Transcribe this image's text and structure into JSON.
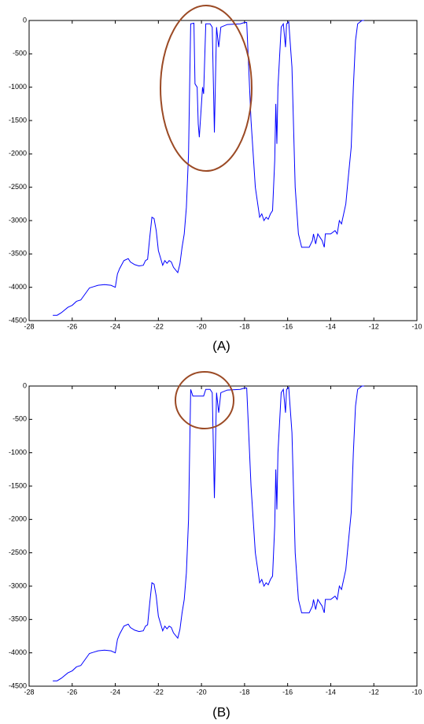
{
  "chart_data": [
    {
      "type": "line",
      "caption": "(A)",
      "color": "#0000ff",
      "x": [
        -26.9,
        -26.7,
        -26.5,
        -26.2,
        -26,
        -25.8,
        -25.6,
        -25.4,
        -25.2,
        -25,
        -24.8,
        -24.5,
        -24.2,
        -24,
        -23.9,
        -23.8,
        -23.6,
        -23.4,
        -23.3,
        -23.1,
        -22.9,
        -22.7,
        -22.6,
        -22.5,
        -22.4,
        -22.3,
        -22.2,
        -22.1,
        -22,
        -21.9,
        -21.8,
        -21.7,
        -21.6,
        -21.5,
        -21.4,
        -21.3,
        -21.1,
        -21,
        -20.9,
        -20.8,
        -20.7,
        -20.6,
        -20.55,
        -20.5,
        -20.35,
        -20.3,
        -20.2,
        -20.15,
        -20.1,
        -19.95,
        -19.9,
        -19.8,
        -19.6,
        -19.5,
        -19.4,
        -19.3,
        -19.2,
        -19.1,
        -18.8,
        -18.2,
        -18,
        -17.9,
        -17.7,
        -17.5,
        -17.3,
        -17.2,
        -17.1,
        -17,
        -16.9,
        -16.8,
        -16.7,
        -16.6,
        -16.55,
        -16.5,
        -16.45,
        -16.3,
        -16.2,
        -16.1,
        -16.05,
        -15.95,
        -15.8,
        -15.65,
        -15.5,
        -15.35,
        -15,
        -14.85,
        -14.8,
        -14.7,
        -14.6,
        -14.5,
        -14.4,
        -14.3,
        -14.25,
        -14,
        -13.8,
        -13.7,
        -13.6,
        -13.5,
        -13.4,
        -13.3,
        -13.2,
        -13.05,
        -12.95,
        -12.85,
        -12.75,
        -12.55,
        -12.45
      ],
      "values": [
        -4420,
        -4420,
        -4380,
        -4300,
        -4270,
        -4210,
        -4190,
        -4100,
        -4010,
        -3990,
        -3970,
        -3960,
        -3970,
        -4000,
        -3800,
        -3720,
        -3600,
        -3570,
        -3620,
        -3660,
        -3680,
        -3670,
        -3600,
        -3580,
        -3250,
        -2950,
        -2970,
        -3150,
        -3450,
        -3560,
        -3670,
        -3600,
        -3640,
        -3600,
        -3620,
        -3700,
        -3780,
        -3650,
        -3400,
        -3200,
        -2800,
        -2000,
        -1000,
        -50,
        -40,
        -950,
        -1000,
        -1550,
        -1750,
        -1000,
        -1100,
        -50,
        -50,
        -100,
        -1680,
        -100,
        -400,
        -100,
        -60,
        -50,
        -30,
        -30,
        -1500,
        -2500,
        -2950,
        -2900,
        -3000,
        -2950,
        -2980,
        -2900,
        -2850,
        -2100,
        -1250,
        -1850,
        -1000,
        -100,
        -50,
        -400,
        -50,
        -20,
        -700,
        -2500,
        -3200,
        -3400,
        -3400,
        -3300,
        -3200,
        -3350,
        -3200,
        -3250,
        -3300,
        -3400,
        -3200,
        -3200,
        -3150,
        -3200,
        -3000,
        -3050,
        -2900,
        -2750,
        -2400,
        -1900,
        -1000,
        -300,
        -50,
        0,
        0
      ],
      "xlim": [
        -28,
        -10
      ],
      "xticks": [
        -28,
        -26,
        -24,
        -22,
        -20,
        -18,
        -16,
        -14,
        -12,
        -10
      ],
      "ylim": [
        -4500,
        0
      ],
      "yticks": [
        0,
        -500,
        -1000,
        -1500,
        -2000,
        -2500,
        -3000,
        -3500,
        -4000,
        -4500
      ]
    },
    {
      "type": "line",
      "caption": "(B)",
      "color": "#0000ff",
      "x": [
        -26.9,
        -26.7,
        -26.5,
        -26.2,
        -26,
        -25.8,
        -25.6,
        -25.4,
        -25.2,
        -25,
        -24.8,
        -24.5,
        -24.2,
        -24,
        -23.9,
        -23.8,
        -23.6,
        -23.4,
        -23.3,
        -23.1,
        -22.9,
        -22.7,
        -22.6,
        -22.5,
        -22.4,
        -22.3,
        -22.2,
        -22.1,
        -22,
        -21.9,
        -21.8,
        -21.7,
        -21.6,
        -21.5,
        -21.4,
        -21.3,
        -21.1,
        -21,
        -20.9,
        -20.8,
        -20.7,
        -20.6,
        -20.55,
        -20.5,
        -20.4,
        -19.9,
        -19.8,
        -19.6,
        -19.5,
        -19.4,
        -19.3,
        -19.2,
        -19.1,
        -18.8,
        -18.2,
        -18,
        -17.9,
        -17.7,
        -17.5,
        -17.3,
        -17.2,
        -17.1,
        -17,
        -16.9,
        -16.8,
        -16.7,
        -16.6,
        -16.55,
        -16.5,
        -16.45,
        -16.3,
        -16.2,
        -16.1,
        -16.05,
        -15.95,
        -15.8,
        -15.65,
        -15.5,
        -15.35,
        -15,
        -14.85,
        -14.8,
        -14.7,
        -14.6,
        -14.5,
        -14.4,
        -14.3,
        -14.25,
        -14,
        -13.8,
        -13.7,
        -13.6,
        -13.5,
        -13.4,
        -13.3,
        -13.2,
        -13.05,
        -12.95,
        -12.85,
        -12.75,
        -12.55,
        -12.45
      ],
      "values": [
        -4420,
        -4420,
        -4380,
        -4300,
        -4270,
        -4210,
        -4190,
        -4100,
        -4010,
        -3990,
        -3970,
        -3960,
        -3970,
        -4000,
        -3800,
        -3720,
        -3600,
        -3570,
        -3620,
        -3660,
        -3680,
        -3670,
        -3600,
        -3580,
        -3250,
        -2950,
        -2970,
        -3150,
        -3450,
        -3560,
        -3670,
        -3600,
        -3640,
        -3600,
        -3620,
        -3700,
        -3780,
        -3650,
        -3400,
        -3200,
        -2800,
        -2000,
        -1000,
        -50,
        -150,
        -150,
        -50,
        -50,
        -100,
        -1680,
        -100,
        -400,
        -100,
        -60,
        -50,
        -30,
        -30,
        -1500,
        -2500,
        -2950,
        -2900,
        -3000,
        -2950,
        -2980,
        -2900,
        -2850,
        -2100,
        -1250,
        -1850,
        -1000,
        -100,
        -50,
        -400,
        -50,
        -20,
        -700,
        -2500,
        -3200,
        -3400,
        -3400,
        -3300,
        -3200,
        -3350,
        -3200,
        -3250,
        -3300,
        -3400,
        -3200,
        -3200,
        -3150,
        -3200,
        -3000,
        -3050,
        -2900,
        -2750,
        -2400,
        -1900,
        -1000,
        -300,
        -50,
        0,
        0
      ],
      "xlim": [
        -28,
        -10
      ],
      "xticks": [
        -28,
        -26,
        -24,
        -22,
        -20,
        -18,
        -16,
        -14,
        -12,
        -10
      ],
      "ylim": [
        -4500,
        0
      ],
      "yticks": [
        0,
        -500,
        -1000,
        -1500,
        -2000,
        -2500,
        -3000,
        -3500,
        -4000,
        -4500
      ]
    }
  ]
}
